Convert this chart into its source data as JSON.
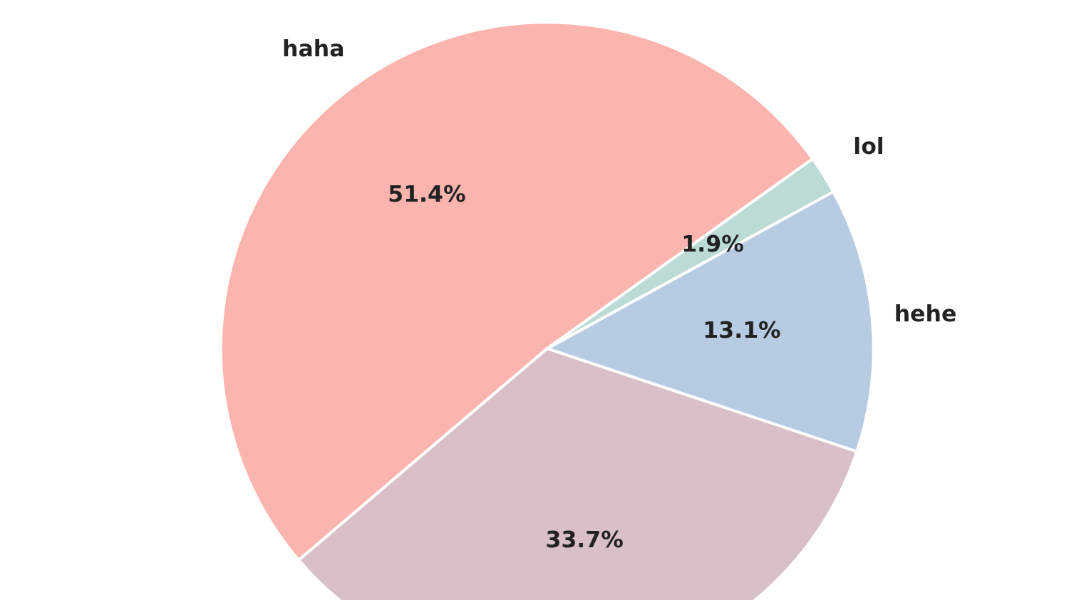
{
  "chart_data": {
    "type": "pie",
    "categories": [
      "haha",
      "lol",
      "hehe",
      null
    ],
    "values": [
      51.4,
      1.9,
      13.1,
      33.7
    ],
    "value_labels": [
      "51.4%",
      "1.9%",
      "13.1%",
      "33.7%"
    ],
    "colors": [
      "#fbb4ae",
      "#bcdad6",
      "#b7cce2",
      "#d9bfc7"
    ]
  }
}
